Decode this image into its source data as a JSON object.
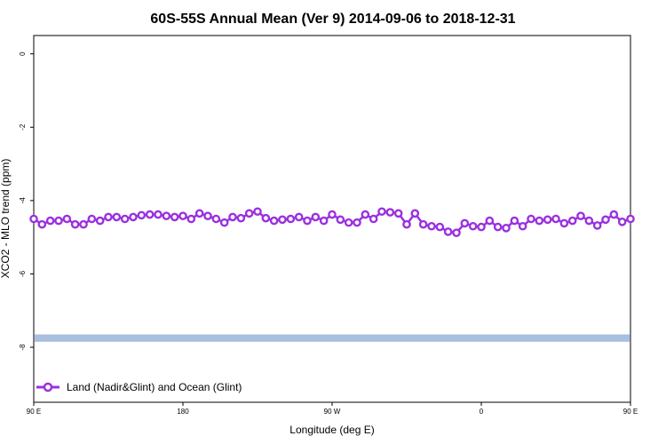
{
  "chart_data": {
    "type": "line",
    "title": "60S-55S Annual Mean (Ver 9)   2014-09-06 to 2018-12-31",
    "xlabel": "Longitude (deg E)",
    "ylabel": "XCO2 - MLO trend (ppm)",
    "xlim": [
      90,
      450
    ],
    "ylim": [
      -9.5,
      0.5
    ],
    "x_ticks": [
      {
        "value": 90,
        "label": "90 E"
      },
      {
        "value": 180,
        "label": "180"
      },
      {
        "value": 270,
        "label": "90 W"
      },
      {
        "value": 360,
        "label": "0"
      },
      {
        "value": 450,
        "label": "90 E"
      }
    ],
    "y_ticks": [
      {
        "value": 0,
        "label": "0"
      },
      {
        "value": -2,
        "label": "-2"
      },
      {
        "value": -4,
        "label": "-4"
      },
      {
        "value": -6,
        "label": "-6"
      },
      {
        "value": -8,
        "label": "-8"
      }
    ],
    "grid": false,
    "legend_position": "bottom-left",
    "band": {
      "y_from": -7.65,
      "y_to": -7.85,
      "color": "#a8bfe0"
    },
    "series": [
      {
        "name": "Land (Nadir&Glint) and Ocean (Glint)",
        "color": "#9b30e0",
        "x": [
          90,
          95,
          100,
          105,
          110,
          115,
          120,
          125,
          130,
          135,
          140,
          145,
          150,
          155,
          160,
          165,
          170,
          175,
          180,
          185,
          190,
          195,
          200,
          205,
          210,
          215,
          220,
          225,
          230,
          235,
          240,
          245,
          250,
          255,
          260,
          265,
          270,
          275,
          280,
          285,
          290,
          295,
          300,
          305,
          310,
          315,
          320,
          325,
          330,
          335,
          340,
          345,
          350,
          355,
          360,
          365,
          370,
          375,
          380,
          385,
          390,
          395,
          400,
          405,
          410,
          415,
          420,
          425,
          430,
          435,
          440,
          445,
          450
        ],
        "y": [
          -4.5,
          -4.65,
          -4.55,
          -4.55,
          -4.5,
          -4.65,
          -4.65,
          -4.5,
          -4.55,
          -4.45,
          -4.45,
          -4.5,
          -4.45,
          -4.4,
          -4.38,
          -4.38,
          -4.42,
          -4.45,
          -4.42,
          -4.5,
          -4.35,
          -4.42,
          -4.5,
          -4.6,
          -4.45,
          -4.48,
          -4.35,
          -4.3,
          -4.48,
          -4.55,
          -4.52,
          -4.5,
          -4.45,
          -4.55,
          -4.45,
          -4.55,
          -4.38,
          -4.52,
          -4.6,
          -4.6,
          -4.38,
          -4.5,
          -4.3,
          -4.32,
          -4.35,
          -4.65,
          -4.35,
          -4.65,
          -4.7,
          -4.72,
          -4.85,
          -4.88,
          -4.62,
          -4.7,
          -4.72,
          -4.55,
          -4.72,
          -4.75,
          -4.55,
          -4.7,
          -4.5,
          -4.55,
          -4.52,
          -4.5,
          -4.62,
          -4.55,
          -4.42,
          -4.55,
          -4.68,
          -4.52,
          -4.38,
          -4.58,
          -4.5
        ]
      }
    ]
  }
}
